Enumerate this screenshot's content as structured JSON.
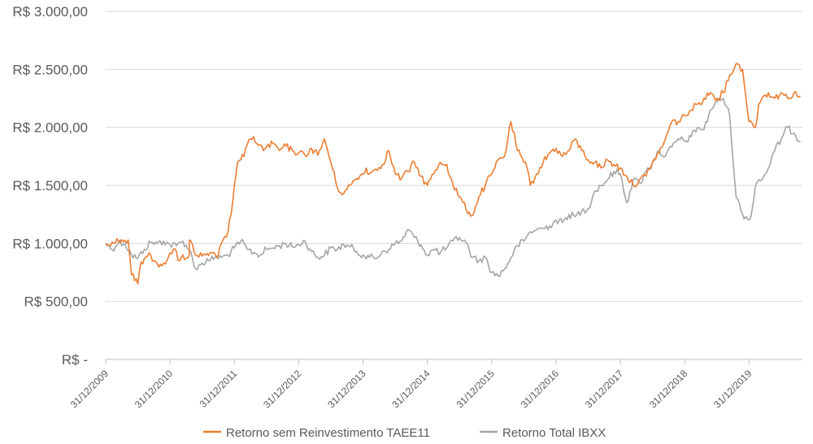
{
  "chart_data": {
    "type": "line",
    "xlabel": "",
    "ylabel": "",
    "ylim": [
      0,
      3000
    ],
    "grid": "horizontal",
    "legend_position": "bottom",
    "y_ticks": [
      {
        "value": 0,
        "label": "R$ -"
      },
      {
        "value": 500,
        "label": "R$ 500,00"
      },
      {
        "value": 1000,
        "label": "R$ 1.000,00"
      },
      {
        "value": 1500,
        "label": "R$ 1.500,00"
      },
      {
        "value": 2000,
        "label": "R$ 2.000,00"
      },
      {
        "value": 2500,
        "label": "R$ 2.500,00"
      },
      {
        "value": 3000,
        "label": "R$ 3.000,00"
      }
    ],
    "x_ticks": [
      {
        "value": 2009.0,
        "label": "31/12/2009"
      },
      {
        "value": 2010.0,
        "label": "31/12/2010"
      },
      {
        "value": 2011.0,
        "label": "31/12/2011"
      },
      {
        "value": 2012.0,
        "label": "31/12/2012"
      },
      {
        "value": 2013.0,
        "label": "31/12/2013"
      },
      {
        "value": 2014.0,
        "label": "31/12/2014"
      },
      {
        "value": 2015.0,
        "label": "31/12/2015"
      },
      {
        "value": 2016.0,
        "label": "31/12/2016"
      },
      {
        "value": 2017.0,
        "label": "31/12/2017"
      },
      {
        "value": 2018.0,
        "label": "31/12/2018"
      },
      {
        "value": 2019.0,
        "label": "31/12/2019"
      }
    ],
    "xlim": [
      2009.0,
      2019.83
    ],
    "series": [
      {
        "name": "Retorno sem Reinvestimento TAEE11",
        "color": "#ED7D31",
        "x": [
          2009.0,
          2009.1,
          2009.2,
          2009.35,
          2009.4,
          2009.5,
          2009.55,
          2009.6,
          2009.7,
          2009.75,
          2009.85,
          2009.9,
          2009.95,
          2010.05,
          2010.15,
          2010.2,
          2010.25,
          2010.3,
          2010.3,
          2010.4,
          2010.5,
          2010.55,
          2010.6,
          2010.75,
          2010.8,
          2010.85,
          2010.9,
          2010.95,
          2011.0,
          2011.05,
          2011.1,
          2011.15,
          2011.2,
          2011.25,
          2011.3,
          2011.35,
          2011.4,
          2011.45,
          2011.5,
          2011.6,
          2011.7,
          2011.8,
          2011.9,
          2012.0,
          2012.1,
          2012.2,
          2012.3,
          2012.4,
          2012.5,
          2012.6,
          2012.7,
          2012.8,
          2012.9,
          2013.0,
          2013.05,
          2013.1,
          2013.2,
          2013.3,
          2013.4,
          2013.5,
          2013.6,
          2013.7,
          2013.8,
          2013.9,
          2014.0,
          2014.1,
          2014.2,
          2014.3,
          2014.4,
          2014.5,
          2014.6,
          2014.7,
          2014.8,
          2014.9,
          2015.0,
          2015.05,
          2015.1,
          2015.2,
          2015.3,
          2015.4,
          2015.5,
          2015.55,
          2015.6,
          2015.7,
          2015.8,
          2015.9,
          2016.0,
          2016.1,
          2016.2,
          2016.3,
          2016.4,
          2016.5,
          2016.6,
          2016.7,
          2016.8,
          2016.9,
          2017.0,
          2017.1,
          2017.2,
          2017.3,
          2017.4,
          2017.5,
          2017.6,
          2017.7,
          2017.8,
          2017.9,
          2018.0,
          2018.1,
          2018.2,
          2018.3,
          2018.4,
          2018.5,
          2018.6,
          2018.7,
          2018.8,
          2018.9,
          2019.0,
          2019.1,
          2019.15,
          2019.2,
          2019.3,
          2019.4,
          2019.5,
          2019.6,
          2019.7,
          2019.8
        ],
        "values": [
          1000,
          1010,
          1020,
          1030,
          730,
          650,
          840,
          870,
          900,
          850,
          820,
          830,
          850,
          950,
          850,
          900,
          870,
          900,
          1030,
          900,
          890,
          900,
          895,
          900,
          1000,
          1060,
          1100,
          1250,
          1500,
          1700,
          1720,
          1750,
          1850,
          1900,
          1920,
          1860,
          1850,
          1800,
          1830,
          1860,
          1800,
          1840,
          1800,
          1780,
          1760,
          1820,
          1760,
          1900,
          1700,
          1480,
          1430,
          1500,
          1560,
          1600,
          1650,
          1600,
          1640,
          1680,
          1800,
          1600,
          1560,
          1620,
          1700,
          1580,
          1500,
          1600,
          1700,
          1680,
          1500,
          1400,
          1300,
          1240,
          1400,
          1500,
          1600,
          1650,
          1720,
          1750,
          2050,
          1800,
          1700,
          1650,
          1500,
          1600,
          1700,
          1780,
          1820,
          1750,
          1800,
          1900,
          1800,
          1720,
          1700,
          1650,
          1720,
          1680,
          1650,
          1580,
          1500,
          1550,
          1580,
          1700,
          1780,
          1900,
          2050,
          2050,
          2100,
          2150,
          2200,
          2250,
          2300,
          2250,
          2300,
          2450,
          2550,
          2500,
          2050,
          2000,
          2200,
          2250,
          2300,
          2250,
          2300,
          2250,
          2300,
          2270
        ]
      },
      {
        "name": "Retorno Total IBXX",
        "color": "#A5A5A5",
        "x": [
          2009.0,
          2009.1,
          2009.2,
          2009.3,
          2009.4,
          2009.5,
          2009.6,
          2009.7,
          2009.8,
          2009.9,
          2010.0,
          2010.1,
          2010.2,
          2010.3,
          2010.4,
          2010.5,
          2010.6,
          2010.7,
          2010.8,
          2010.9,
          2011.0,
          2011.1,
          2011.2,
          2011.3,
          2011.4,
          2011.5,
          2011.6,
          2011.7,
          2011.8,
          2011.9,
          2012.0,
          2012.1,
          2012.2,
          2012.3,
          2012.4,
          2012.5,
          2012.6,
          2012.7,
          2012.8,
          2012.9,
          2013.0,
          2013.1,
          2013.2,
          2013.3,
          2013.4,
          2013.5,
          2013.6,
          2013.7,
          2013.8,
          2013.9,
          2014.0,
          2014.1,
          2014.2,
          2014.3,
          2014.4,
          2014.5,
          2014.6,
          2014.7,
          2014.8,
          2014.9,
          2015.0,
          2015.1,
          2015.2,
          2015.3,
          2015.4,
          2015.5,
          2015.6,
          2015.7,
          2015.8,
          2015.9,
          2016.0,
          2016.1,
          2016.2,
          2016.3,
          2016.4,
          2016.5,
          2016.6,
          2016.7,
          2016.8,
          2016.9,
          2017.0,
          2017.1,
          2017.2,
          2017.3,
          2017.4,
          2017.5,
          2017.6,
          2017.7,
          2017.8,
          2017.9,
          2018.0,
          2018.1,
          2018.2,
          2018.3,
          2018.4,
          2018.5,
          2018.6,
          2018.7,
          2018.8,
          2018.9,
          2019.0,
          2019.05,
          2019.1,
          2019.15,
          2019.2,
          2019.3,
          2019.4,
          2019.5,
          2019.6,
          2019.7,
          2019.8
        ],
        "values": [
          1000,
          950,
          1010,
          1000,
          900,
          870,
          950,
          1010,
          1000,
          1020,
          990,
          980,
          1020,
          950,
          780,
          830,
          850,
          880,
          880,
          900,
          960,
          1020,
          950,
          920,
          900,
          950,
          960,
          980,
          1000,
          970,
          990,
          1020,
          930,
          880,
          900,
          960,
          950,
          990,
          970,
          930,
          900,
          880,
          870,
          930,
          950,
          1000,
          1020,
          1120,
          1050,
          990,
          900,
          950,
          920,
          960,
          1020,
          1050,
          1010,
          880,
          850,
          880,
          750,
          720,
          780,
          880,
          980,
          1020,
          1100,
          1120,
          1130,
          1150,
          1200,
          1180,
          1250,
          1230,
          1280,
          1300,
          1450,
          1500,
          1550,
          1620,
          1600,
          1350,
          1550,
          1520,
          1620,
          1700,
          1800,
          1750,
          1830,
          1900,
          1880,
          1920,
          2000,
          1980,
          2150,
          2220,
          2250,
          2100,
          1400,
          1250,
          1200,
          1300,
          1500,
          1550,
          1550,
          1650,
          1800,
          1900,
          2000,
          1950,
          1880
        ]
      }
    ]
  }
}
